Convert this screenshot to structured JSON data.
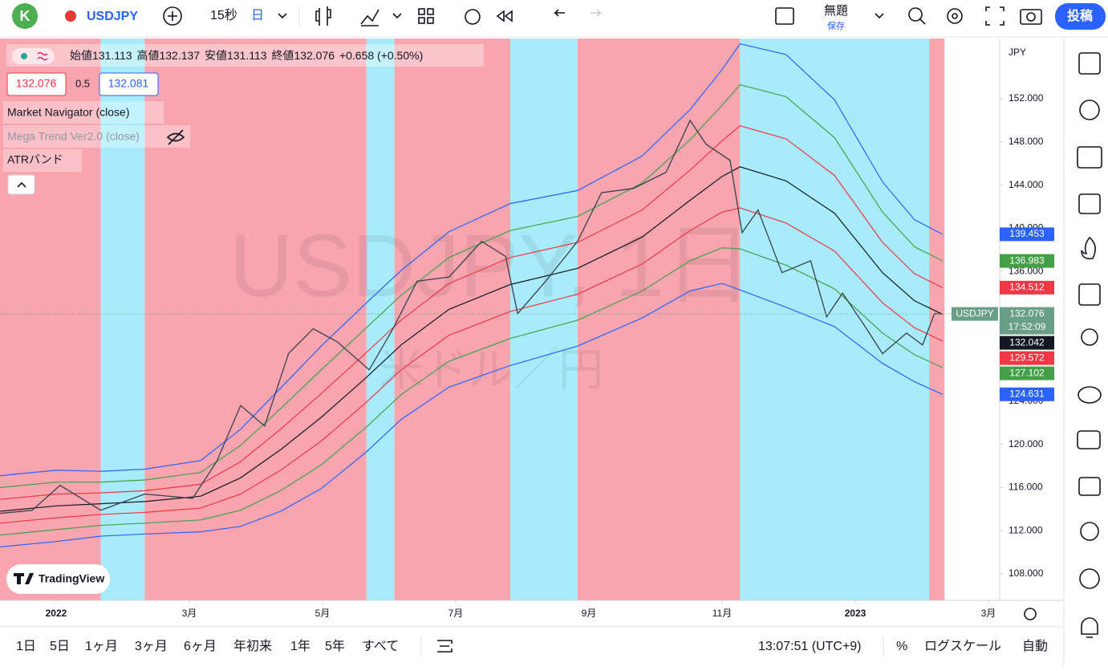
{
  "toolbar": {
    "avatar": "K",
    "symbol": "USDJPY",
    "interval": "15秒",
    "period": "日",
    "layout_name": "無題",
    "save": "保存",
    "publish": "投稿"
  },
  "legend": {
    "open_label": "始値",
    "open": 131.113,
    "high_label": "高値",
    "high": 132.137,
    "low_label": "安値",
    "low": 131.113,
    "close_label": "終値",
    "close": 132.076,
    "change": "+0.658",
    "change_pct": "(+0.50%)",
    "sell": 132.076,
    "spread": 0.5,
    "buy": 132.081,
    "indicators": [
      "Market Navigator (close)",
      "Mega Trend Ver2.0 (close)",
      "ATRバンド"
    ]
  },
  "watermark": {
    "title": "USDJPY, 1日",
    "subtitle": "米ドル／円"
  },
  "logo": "TradingView",
  "chart_data": {
    "type": "line",
    "currency": "JPY",
    "countdown": "17:52:09",
    "grid": false,
    "xlim": [
      -0.843,
      14.157
    ],
    "ylim": [
      105.55,
      157.58
    ],
    "xticks": [
      {
        "value": 0,
        "label": "2022"
      },
      {
        "value": 2,
        "label": "3月"
      },
      {
        "value": 4,
        "label": "5月"
      },
      {
        "value": 6,
        "label": "7月"
      },
      {
        "value": 8,
        "label": "9月"
      },
      {
        "value": 10,
        "label": "11月"
      },
      {
        "value": 12,
        "label": "2023"
      },
      {
        "value": 14,
        "label": "3月"
      }
    ],
    "yticks": [
      {
        "value": 152,
        "label": "152.000"
      },
      {
        "value": 148,
        "label": "148.000"
      },
      {
        "value": 144,
        "label": "144.000"
      },
      {
        "value": 140,
        "label": "140.000"
      },
      {
        "value": 136,
        "label": "136.000"
      },
      {
        "value": 124,
        "label": "124.000"
      },
      {
        "value": 120,
        "label": "120.000"
      },
      {
        "value": 116,
        "label": "116.000"
      },
      {
        "value": 112,
        "label": "112.000"
      },
      {
        "value": 108,
        "label": "108.000"
      }
    ],
    "regions": [
      {
        "x0": -0.843,
        "x1": 0.67,
        "color": "#f8a5b0"
      },
      {
        "x0": 0.67,
        "x1": 1.33,
        "color": "#a8ecfb"
      },
      {
        "x0": 1.33,
        "x1": 4.66,
        "color": "#f8a5b0"
      },
      {
        "x0": 4.66,
        "x1": 5.08,
        "color": "#a8ecfb"
      },
      {
        "x0": 5.08,
        "x1": 6.82,
        "color": "#f8a5b0"
      },
      {
        "x0": 6.82,
        "x1": 7.83,
        "color": "#a8ecfb"
      },
      {
        "x0": 7.83,
        "x1": 10.27,
        "color": "#f8a5b0"
      },
      {
        "x0": 10.27,
        "x1": 13.11,
        "color": "#a8ecfb"
      },
      {
        "x0": 13.11,
        "x1": 13.34,
        "color": "#f8a5b0"
      }
    ],
    "x": [
      -0.84,
      0,
      0.67,
      1.33,
      2.17,
      2.77,
      3.37,
      3.98,
      4.66,
      5.18,
      5.9,
      6.82,
      7.83,
      8.8,
      9.52,
      10.0,
      10.27,
      10.96,
      11.69,
      12.41,
      12.89,
      13.31
    ],
    "series": [
      {
        "color": "#2962ff",
        "values": [
          117.1,
          117.6,
          117.5,
          117.7,
          118.5,
          121.4,
          125.2,
          129.1,
          133.1,
          136.1,
          139.7,
          142.3,
          143.5,
          146.7,
          151.0,
          154.7,
          157.1,
          156.1,
          151.9,
          144.3,
          140.8,
          139.453
        ]
      },
      {
        "color": "#43a047",
        "values": [
          116.0,
          116.5,
          116.5,
          116.7,
          117.4,
          119.9,
          123.3,
          126.9,
          130.8,
          133.8,
          137.3,
          139.8,
          141.1,
          144.2,
          148.2,
          151.4,
          153.3,
          152.2,
          148.4,
          141.5,
          138.3,
          136.983
        ]
      },
      {
        "color": "#f23645",
        "values": [
          114.9,
          115.4,
          115.5,
          115.7,
          116.3,
          118.4,
          121.4,
          124.7,
          128.5,
          131.5,
          134.9,
          137.3,
          138.7,
          141.7,
          145.4,
          148.1,
          149.5,
          148.3,
          144.9,
          138.7,
          135.8,
          134.512
        ]
      },
      {
        "color": "#131722",
        "values": [
          113.8,
          114.3,
          114.5,
          114.7,
          115.2,
          116.9,
          119.5,
          122.5,
          126.2,
          129.2,
          132.5,
          134.8,
          136.3,
          139.2,
          142.6,
          144.8,
          145.7,
          144.4,
          141.4,
          135.9,
          133.3,
          132.042
        ]
      },
      {
        "color": "#f23645",
        "values": [
          112.7,
          113.2,
          113.5,
          113.7,
          114.1,
          115.4,
          117.6,
          120.3,
          123.9,
          126.9,
          130.1,
          132.3,
          133.9,
          136.7,
          139.8,
          141.5,
          141.9,
          140.5,
          137.9,
          133.1,
          130.8,
          129.572
        ]
      },
      {
        "color": "#43a047",
        "values": [
          111.6,
          112.1,
          112.5,
          112.7,
          113.0,
          113.9,
          115.7,
          118.1,
          121.6,
          124.6,
          127.7,
          129.8,
          131.5,
          134.2,
          137.0,
          138.2,
          138.1,
          136.6,
          134.4,
          130.3,
          128.3,
          127.102
        ]
      },
      {
        "color": "#2962ff",
        "values": [
          110.5,
          111.0,
          111.5,
          111.7,
          111.9,
          112.4,
          113.8,
          115.9,
          119.3,
          122.3,
          125.3,
          127.3,
          129.1,
          131.7,
          134.2,
          134.9,
          134.3,
          132.7,
          130.9,
          127.5,
          125.8,
          124.631
        ]
      }
    ],
    "price": {
      "name": "USDJPY",
      "color": "#3b3f4c",
      "label_color": "#6a9f87",
      "x": [
        -0.84,
        -0.36,
        0.06,
        0.67,
        1.33,
        2.05,
        2.41,
        2.77,
        3.13,
        3.49,
        3.86,
        4.22,
        4.7,
        5.06,
        5.42,
        5.9,
        6.39,
        6.75,
        6.93,
        7.35,
        7.83,
        8.19,
        8.67,
        9.16,
        9.52,
        9.76,
        10.12,
        10.3,
        10.54,
        10.9,
        11.33,
        11.57,
        11.81,
        12.17,
        12.41,
        12.77,
        13.01,
        13.19,
        13.31
      ],
      "values": [
        113.6,
        113.9,
        116.2,
        113.9,
        115.4,
        115.0,
        118.4,
        123.6,
        121.7,
        128.4,
        130.7,
        129.5,
        126.9,
        130.7,
        135.1,
        135.5,
        138.8,
        137.4,
        132.1,
        135.1,
        138.8,
        143.3,
        143.7,
        145.2,
        150.0,
        147.8,
        146.3,
        139.6,
        141.7,
        135.9,
        137.0,
        131.8,
        134.0,
        130.7,
        128.4,
        130.3,
        129.2,
        132.1,
        132.076
      ]
    }
  },
  "bottom_bar": {
    "ranges": [
      "1日",
      "5日",
      "1ヶ月",
      "3ヶ月",
      "6ヶ月",
      "年初来",
      "1年",
      "5年",
      "すべて"
    ],
    "clock": "13:07:51 (UTC+9)",
    "percent": "%",
    "log_scale": "ログスケール",
    "auto": "自動"
  }
}
